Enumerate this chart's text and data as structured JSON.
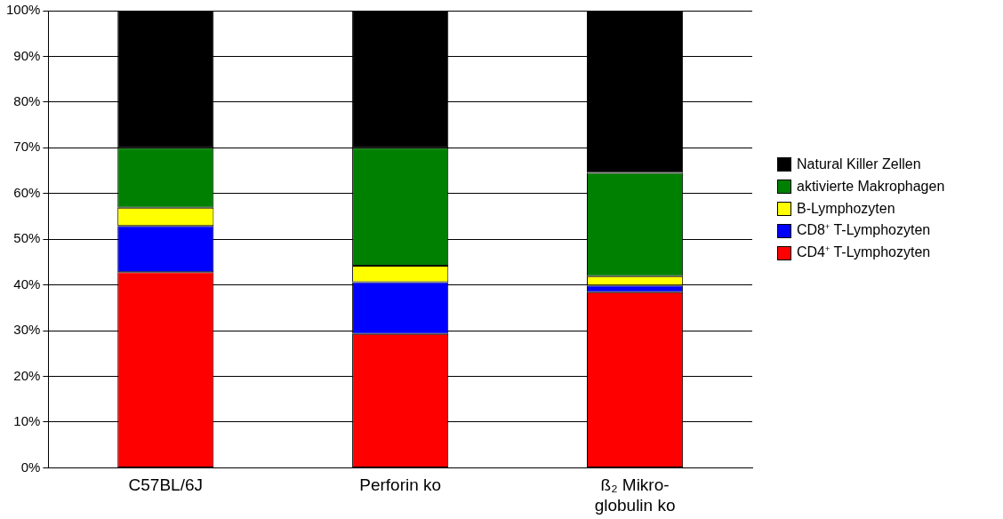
{
  "chart_data": {
    "type": "bar",
    "stacked": true,
    "categories": [
      "C57BL/6J",
      "Perforin ko",
      "ß₂ Mikro-\nglobulin ko"
    ],
    "series": [
      {
        "name": "CD4$^{+}$ T-Lymphozyten",
        "color": "#ff0000",
        "values": [
          42.8,
          29.3,
          38.4
        ]
      },
      {
        "name": "CD8$^{+}$ T-Lymphozyten",
        "color": "#0000ff",
        "values": [
          10.1,
          11.3,
          1.5
        ]
      },
      {
        "name": "B-Lymphozyten",
        "color": "#ffff00",
        "values": [
          4.0,
          3.6,
          2.0
        ]
      },
      {
        "name": "aktivierte Makrophagen",
        "color": "#008000",
        "values": [
          13.1,
          25.8,
          22.6
        ]
      },
      {
        "name": "Natural Killer Zellen",
        "color": "#000000",
        "values": [
          30.0,
          30.0,
          35.5
        ]
      }
    ],
    "ylim": [
      0,
      100
    ],
    "yticks": [
      {
        "value": 0,
        "label": "0%"
      },
      {
        "value": 10,
        "label": "10%"
      },
      {
        "value": 20,
        "label": "20%"
      },
      {
        "value": 30,
        "label": "30%"
      },
      {
        "value": 40,
        "label": "40%"
      },
      {
        "value": 50,
        "label": "50%"
      },
      {
        "value": 60,
        "label": "60%"
      },
      {
        "value": 70,
        "label": "70%"
      },
      {
        "value": 80,
        "label": "80%"
      },
      {
        "value": 90,
        "label": "90%"
      },
      {
        "value": 100,
        "label": "100%"
      }
    ],
    "grid": "y",
    "legend": "right"
  }
}
